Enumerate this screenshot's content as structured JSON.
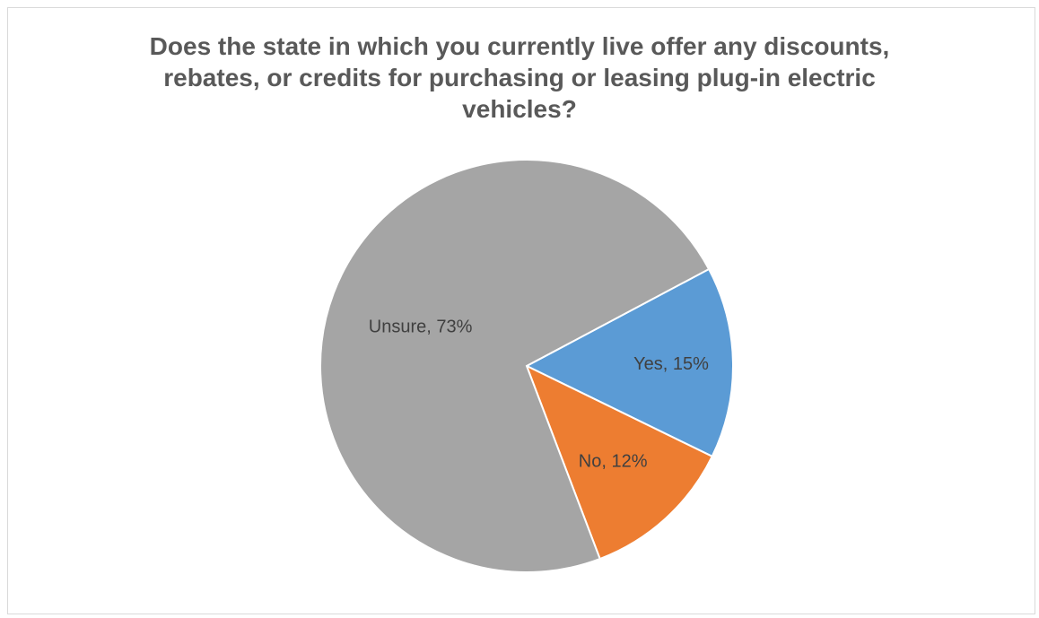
{
  "chart_data": {
    "type": "pie",
    "title_lines": [
      "Does the state in which you currently live offer any discounts,",
      "rebates, or credits for purchasing or leasing plug-in electric",
      "vehicles?"
    ],
    "slices": [
      {
        "name": "Yes",
        "value": 15,
        "label": "Yes, 15%",
        "color": "#5b9bd5"
      },
      {
        "name": "No",
        "value": 12,
        "label": "No, 12%",
        "color": "#ed7d31"
      },
      {
        "name": "Unsure",
        "value": 73,
        "label": "Unsure, 73%",
        "color": "#a5a5a5"
      }
    ]
  }
}
